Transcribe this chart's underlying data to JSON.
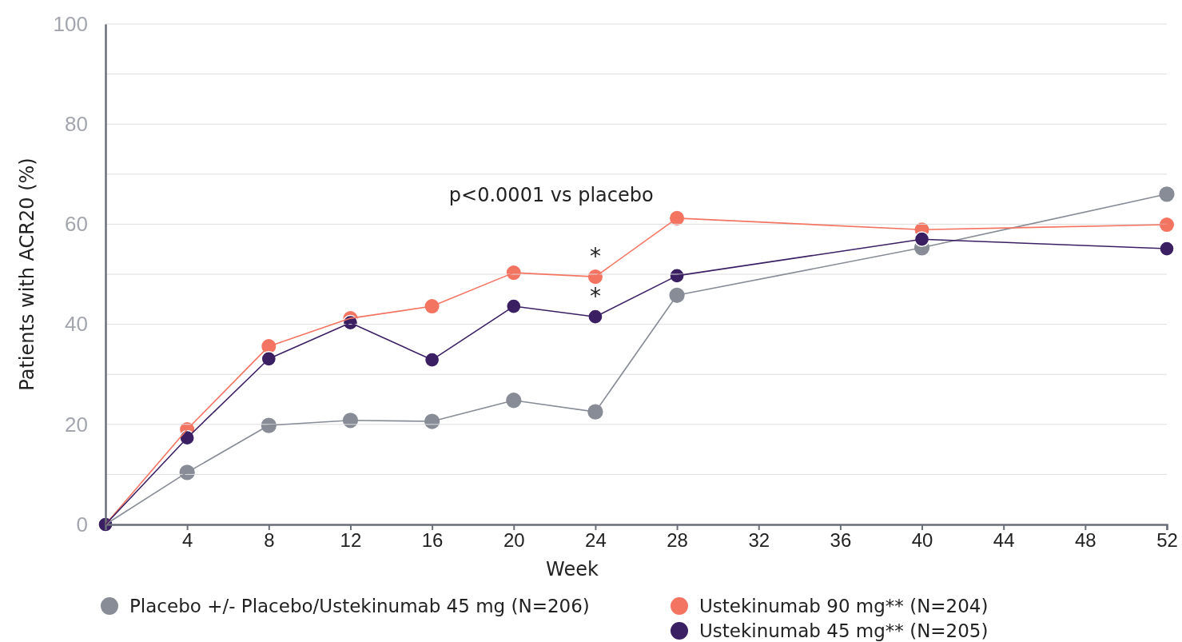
{
  "chart_data": {
    "type": "line",
    "xlabel": "Week",
    "ylabel": "Patients with ACR20 (%)",
    "x": [
      0,
      4,
      8,
      12,
      16,
      20,
      24,
      28,
      40,
      52
    ],
    "series": [
      {
        "name": "Placebo +/- Placebo/Ustekinumab 45 mg (N=206)",
        "color": "#878c96",
        "values": [
          0,
          10.4,
          19.8,
          20.8,
          20.6,
          24.8,
          22.5,
          45.8,
          55.3,
          66
        ]
      },
      {
        "name": "Ustekinumab 90 mg** (N=204)",
        "color": "#f47462",
        "values": [
          0,
          19,
          35.6,
          41.2,
          43.6,
          50.3,
          49.5,
          61.2,
          58.9,
          59.9
        ]
      },
      {
        "name": "Ustekinumab 45 mg** (N=205)",
        "color": "#3b1f63",
        "values": [
          0,
          17.3,
          33.1,
          40.3,
          32.9,
          43.6,
          41.5,
          49.7,
          57,
          55.1
        ]
      }
    ],
    "xlim": [
      0,
      52
    ],
    "xticks": [
      4,
      8,
      12,
      16,
      20,
      24,
      28,
      32,
      36,
      40,
      44,
      48,
      52
    ],
    "ylim": [
      0,
      100
    ],
    "yticks": [
      0,
      {
        "value": 10,
        "label": null
      },
      20,
      {
        "value": 30,
        "label": null
      },
      40,
      {
        "value": 50,
        "label": null
      },
      60,
      {
        "value": 70,
        "label": null
      },
      80,
      {
        "value": 90,
        "label": null
      },
      100
    ],
    "grid": "y",
    "legend": "bottom",
    "marker": "circle",
    "line_style": "solid",
    "annotations": [
      "p<0.0001 vs placebo",
      {
        "text": "*",
        "x": 24,
        "y": 49.5
      },
      {
        "text": "*",
        "x": 24,
        "y": 41.5
      }
    ]
  }
}
